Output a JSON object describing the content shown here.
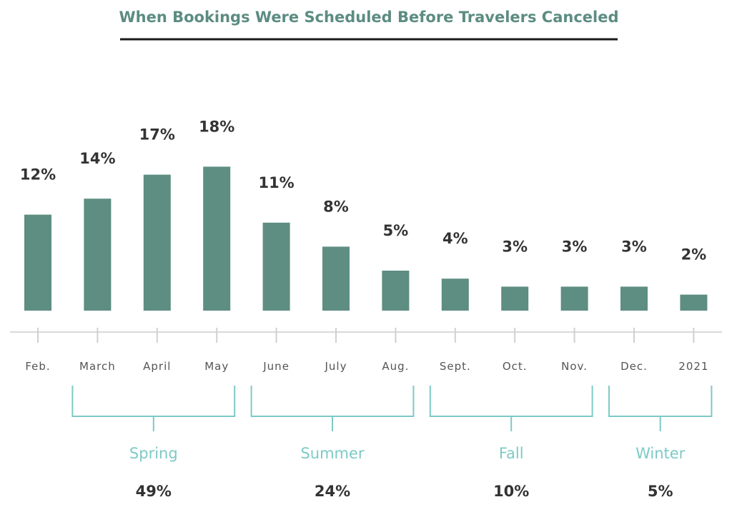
{
  "chart_data": {
    "type": "bar",
    "title": "When Bookings Were Scheduled Before Travelers Canceled",
    "categories": [
      "Feb.",
      "March",
      "April",
      "May",
      "June",
      "July",
      "Aug.",
      "Sept.",
      "Oct.",
      "Nov.",
      "Dec.",
      "2021"
    ],
    "values": [
      12,
      14,
      17,
      18,
      11,
      8,
      5,
      4,
      3,
      3,
      3,
      2
    ],
    "value_labels": [
      "12%",
      "14%",
      "17%",
      "18%",
      "11%",
      "8%",
      "5%",
      "4%",
      "3%",
      "3%",
      "3%",
      "2%"
    ],
    "unit": "%",
    "bar_color": "#5e8d82",
    "groups": [
      {
        "name": "Spring",
        "total": "49%",
        "first": 1,
        "last": 3
      },
      {
        "name": "Summer",
        "total": "24%",
        "first": 4,
        "last": 6
      },
      {
        "name": "Fall",
        "total": "10%",
        "first": 7,
        "last": 9
      },
      {
        "name": "Winter",
        "total": "5%",
        "first": 10,
        "last": 11
      }
    ],
    "bracket_color": "#7ccac6",
    "xlabel": "",
    "ylabel": "",
    "ylim": [
      0,
      18
    ],
    "grid": false,
    "legend": "none"
  }
}
